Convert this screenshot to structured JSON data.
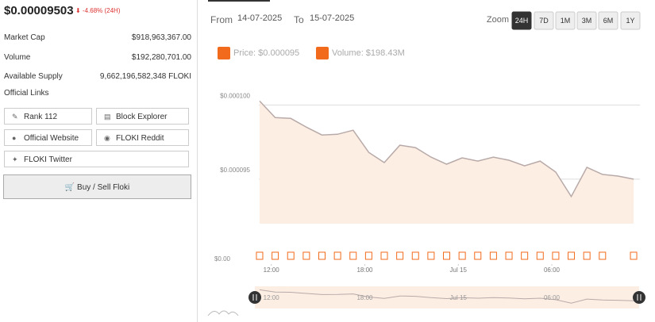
{
  "sidebar": {
    "price": "$0.00009503",
    "change": "⬇ -4.68% (24H)",
    "stats": [
      {
        "label": "Market Cap",
        "value": "$918,963,367.00"
      },
      {
        "label": "Volume",
        "value": "$192,280,701.00"
      },
      {
        "label": "Available Supply",
        "value": "9,662,196,582,348 FLOKI"
      }
    ],
    "links_title": "Official Links",
    "links": [
      "Rank 112",
      "Block Explorer",
      "Official Website",
      "FLOKI Reddit",
      "FLOKI Twitter"
    ],
    "button": "Buy / Sell Floki"
  },
  "header": {
    "from_label": "From",
    "from": "14-07-2025",
    "to_label": "To",
    "to": "15-07-2025",
    "zoom_label": "Zoom",
    "zoom": [
      "24H",
      "7D",
      "1M",
      "3M",
      "6M",
      "1Y"
    ]
  },
  "chart_data": {
    "type": "line",
    "x": [
      11.25,
      12.25,
      13.25,
      14.25,
      15.25,
      16.25,
      17.25,
      18.25,
      19.25,
      20.25,
      21.25,
      22.25,
      23.25,
      24.25,
      25.25,
      26.25,
      27.25,
      28.25,
      29.25,
      30.25,
      31.25,
      32.25,
      33.25,
      34.25,
      35.25
    ],
    "xlim": [
      11.2,
      35.4
    ],
    "xticks": [
      {
        "value": 12,
        "label": "12:00"
      },
      {
        "value": 18,
        "label": "18:00"
      },
      {
        "value": 24,
        "label": "Jul 15"
      },
      {
        "value": 30,
        "label": "06:00"
      }
    ],
    "series": [
      {
        "name": "Price: $0.000095",
        "color": "#f26a1b",
        "line_color": "#b8aaa8",
        "area_color": "#fdeee4",
        "values": [
          0.00010027,
          9.915e-05,
          9.91e-05,
          9.851e-05,
          9.798e-05,
          9.803e-05,
          9.83e-05,
          9.681e-05,
          9.612e-05,
          9.729e-05,
          9.713e-05,
          9.649e-05,
          9.601e-05,
          9.644e-05,
          9.622e-05,
          9.649e-05,
          9.628e-05,
          9.59e-05,
          9.622e-05,
          9.548e-05,
          9.383e-05,
          9.58e-05,
          9.532e-05,
          9.521e-05,
          9.5e-05
        ]
      },
      {
        "name": "Volume: $198.43M",
        "type": "bar",
        "axis": "y2",
        "color": "#f26a1b",
        "values": [
          8200000,
          8200000,
          8200000,
          8200000,
          8200000,
          8200000,
          8200000,
          8200000,
          8200000,
          8200000,
          8200000,
          8200000,
          8200000,
          8200000,
          8200000,
          8200000,
          8200000,
          8200000,
          8200000,
          8200000,
          8200000,
          8200000,
          8200000,
          null,
          8200000
        ]
      }
    ],
    "ylim": [
      9.2e-05,
      0.0001012
    ],
    "yticks": [
      {
        "value": 0.0001,
        "label": "$0.000100"
      },
      {
        "value": 9.5e-05,
        "label": "$0.000095"
      }
    ],
    "y2lim": [
      0,
      20000000
    ],
    "y2ticks": [
      {
        "value": 0,
        "label": "$0.00"
      }
    ],
    "grid": true
  }
}
